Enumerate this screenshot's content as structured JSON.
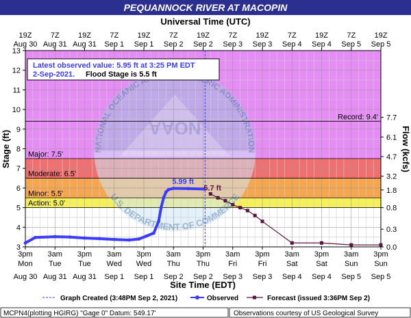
{
  "chart": {
    "title": "PEQUANNOCK RIVER AT MACOPIN",
    "top_axis_title": "Universal Time (UTC)",
    "bottom_axis_title": "Site Time (EDT)",
    "left_axis_title": "Stage (ft)",
    "right_axis_title": "Flow (kcfs)",
    "observed_box": {
      "line1": "Latest observed value: 5.95 ft at 3:25 PM EDT",
      "line2_date": "2-Sep-2021.",
      "line2_flood": "Flood Stage is 5.5 ft"
    },
    "legend": {
      "graph_created": "Graph Created (3:48PM Sep 2, 2021)",
      "observed": "Observed",
      "forecast": "Forecast (issued 3:36PM Sep 2)"
    },
    "footer": {
      "left": "MCPN4(plotting HGIRG) \"Gage 0\" Datum: 549.17'",
      "right": "Observations courtesy of US Geological Survey"
    },
    "watermark_text": {
      "noaa": "NOAA",
      "top_arc": "NATIONAL OCEANIC AND ATMOSPHERIC ADMINISTRATION",
      "bottom_arc": "U.S. DEPARTMENT OF COMMERCE"
    },
    "colors": {
      "record_zone": "#e58cf5",
      "major_zone": "#cc88ff",
      "moderate_zone": "#f06f6f",
      "minor_zone": "#f5a64e",
      "action_zone": "#f5f05a",
      "observed_line": "#3b3bff",
      "forecast_line": "#5a1440",
      "title_bar": "#2b2f8f"
    }
  },
  "chart_data": {
    "type": "line",
    "title": "PEQUANNOCK RIVER AT MACOPIN",
    "x_unit": "days (EDT)",
    "x_range": [
      "Aug 30 3pm",
      "Sep 5 3pm"
    ],
    "ylabel": "Stage (ft)",
    "ylim": [
      3,
      13
    ],
    "y_ticks": [
      3,
      4,
      5,
      6,
      7,
      8,
      9,
      10,
      11,
      12,
      13
    ],
    "y2label": "Flow (kcfs)",
    "y2_ticks": [
      {
        "stage": 3,
        "label": "0.0"
      },
      {
        "stage": 3.9,
        "label": "0.3"
      },
      {
        "stage": 5,
        "label": "0.8"
      },
      {
        "stage": 5.9,
        "label": "1.8"
      },
      {
        "stage": 6.6,
        "label": "3.2"
      },
      {
        "stage": 7.6,
        "label": "4.7"
      },
      {
        "stage": 8.6,
        "label": "6.1"
      },
      {
        "stage": 9.6,
        "label": "7.7"
      }
    ],
    "x_ticks_bottom": [
      {
        "time": "Aug 30 3pm",
        "l1": "3pm",
        "l2": "Mon",
        "l3": "Aug 30"
      },
      {
        "time": "Aug 31 3am",
        "l1": "3am",
        "l2": "Tue",
        "l3": "Aug 31"
      },
      {
        "time": "Aug 31 3pm",
        "l1": "3pm",
        "l2": "Tue",
        "l3": "Aug 31"
      },
      {
        "time": "Sep 1 3am",
        "l1": "3am",
        "l2": "Wed",
        "l3": "Sep 1"
      },
      {
        "time": "Sep 1 3pm",
        "l1": "3pm",
        "l2": "Wed",
        "l3": "Sep 1"
      },
      {
        "time": "Sep 2 3am",
        "l1": "3am",
        "l2": "Thu",
        "l3": "Sep 2"
      },
      {
        "time": "Sep 2 3pm",
        "l1": "3pm",
        "l2": "Thu",
        "l3": "Sep 2"
      },
      {
        "time": "Sep 3 3am",
        "l1": "3am",
        "l2": "Fri",
        "l3": "Sep 3"
      },
      {
        "time": "Sep 3 3pm",
        "l1": "3pm",
        "l2": "Fri",
        "l3": "Sep 3"
      },
      {
        "time": "Sep 4 3am",
        "l1": "3am",
        "l2": "Sat",
        "l3": "Sep 4"
      },
      {
        "time": "Sep 4 3pm",
        "l1": "3pm",
        "l2": "Sat",
        "l3": "Sep 4"
      },
      {
        "time": "Sep 5 3am",
        "l1": "3am",
        "l2": "Sun",
        "l3": "Sep 5"
      },
      {
        "time": "Sep 5 3pm",
        "l1": "3pm",
        "l2": "Sun",
        "l3": "Sep 5"
      }
    ],
    "x_ticks_top": [
      {
        "time": "Aug 30 3pm",
        "l1": "19Z",
        "l2": "Aug 30"
      },
      {
        "time": "Aug 31 3am",
        "l1": "7Z",
        "l2": "Aug 31"
      },
      {
        "time": "Aug 31 3pm",
        "l1": "19Z",
        "l2": "Aug 31"
      },
      {
        "time": "Sep 1 3am",
        "l1": "7Z",
        "l2": "Sep 1"
      },
      {
        "time": "Sep 1 3pm",
        "l1": "19Z",
        "l2": "Sep 1"
      },
      {
        "time": "Sep 2 3am",
        "l1": "7Z",
        "l2": "Sep 2"
      },
      {
        "time": "Sep 2 3pm",
        "l1": "19Z",
        "l2": "Sep 2"
      },
      {
        "time": "Sep 3 3am",
        "l1": "7Z",
        "l2": "Sep 3"
      },
      {
        "time": "Sep 3 3pm",
        "l1": "19Z",
        "l2": "Sep 3"
      },
      {
        "time": "Sep 4 3am",
        "l1": "7Z",
        "l2": "Sep 4"
      },
      {
        "time": "Sep 4 3pm",
        "l1": "19Z",
        "l2": "Sep 4"
      },
      {
        "time": "Sep 5 3am",
        "l1": "7Z",
        "l2": "Sep 5"
      },
      {
        "time": "Sep 5 3pm",
        "l1": "19Z",
        "l2": "Sep 5"
      }
    ],
    "flood_categories": [
      {
        "name": "Record",
        "label": "Record: 9.4'",
        "stage": 9.4
      },
      {
        "name": "Major",
        "label": "Major: 7.5'",
        "stage": 7.5
      },
      {
        "name": "Moderate",
        "label": "Moderate: 6.5'",
        "stage": 6.5
      },
      {
        "name": "Minor",
        "label": "Minor: 5.5'",
        "stage": 5.5
      },
      {
        "name": "Action",
        "label": "Action: 5.0'",
        "stage": 5.0
      }
    ],
    "graph_created_time": "Sep 2 3:48pm",
    "series": [
      {
        "name": "Observed",
        "points": [
          [
            "Aug 30 3pm",
            3.2
          ],
          [
            "Aug 30 7pm",
            3.48
          ],
          [
            "Aug 31 3am",
            3.52
          ],
          [
            "Aug 31 9am",
            3.5
          ],
          [
            "Aug 31 3pm",
            3.45
          ],
          [
            "Aug 31 9pm",
            3.42
          ],
          [
            "Sep 1 3am",
            3.38
          ],
          [
            "Sep 1 9am",
            3.35
          ],
          [
            "Sep 1 1pm",
            3.4
          ],
          [
            "Sep 1 4pm",
            3.55
          ],
          [
            "Sep 1 7pm",
            3.7
          ],
          [
            "Sep 1 9pm",
            4.3
          ],
          [
            "Sep 1 10pm",
            5.0
          ],
          [
            "Sep 1 11pm",
            5.5
          ],
          [
            "Sep 2 12am",
            5.8
          ],
          [
            "Sep 2 1am",
            5.92
          ],
          [
            "Sep 2 3am",
            5.98
          ],
          [
            "Sep 2 9am",
            5.97
          ],
          [
            "Sep 2 3:25pm",
            5.95
          ]
        ],
        "peak_label": "5.99 ft",
        "peak_point": [
          "Sep 2 3am",
          5.99
        ]
      },
      {
        "name": "Forecast",
        "points": [
          [
            "Sep 2 6pm",
            5.7
          ],
          [
            "Sep 2 9pm",
            5.5
          ],
          [
            "Sep 3 12am",
            5.35
          ],
          [
            "Sep 3 3am",
            5.15
          ],
          [
            "Sep 3 6am",
            5.0
          ],
          [
            "Sep 3 9am",
            4.85
          ],
          [
            "Sep 3 12pm",
            4.6
          ],
          [
            "Sep 3 3pm",
            4.3
          ],
          [
            "Sep 4 3am",
            3.2
          ],
          [
            "Sep 4 3pm",
            3.2
          ],
          [
            "Sep 5 3am",
            3.1
          ],
          [
            "Sep 5 3pm",
            3.1
          ]
        ],
        "start_label": "5.7 ft"
      }
    ]
  }
}
